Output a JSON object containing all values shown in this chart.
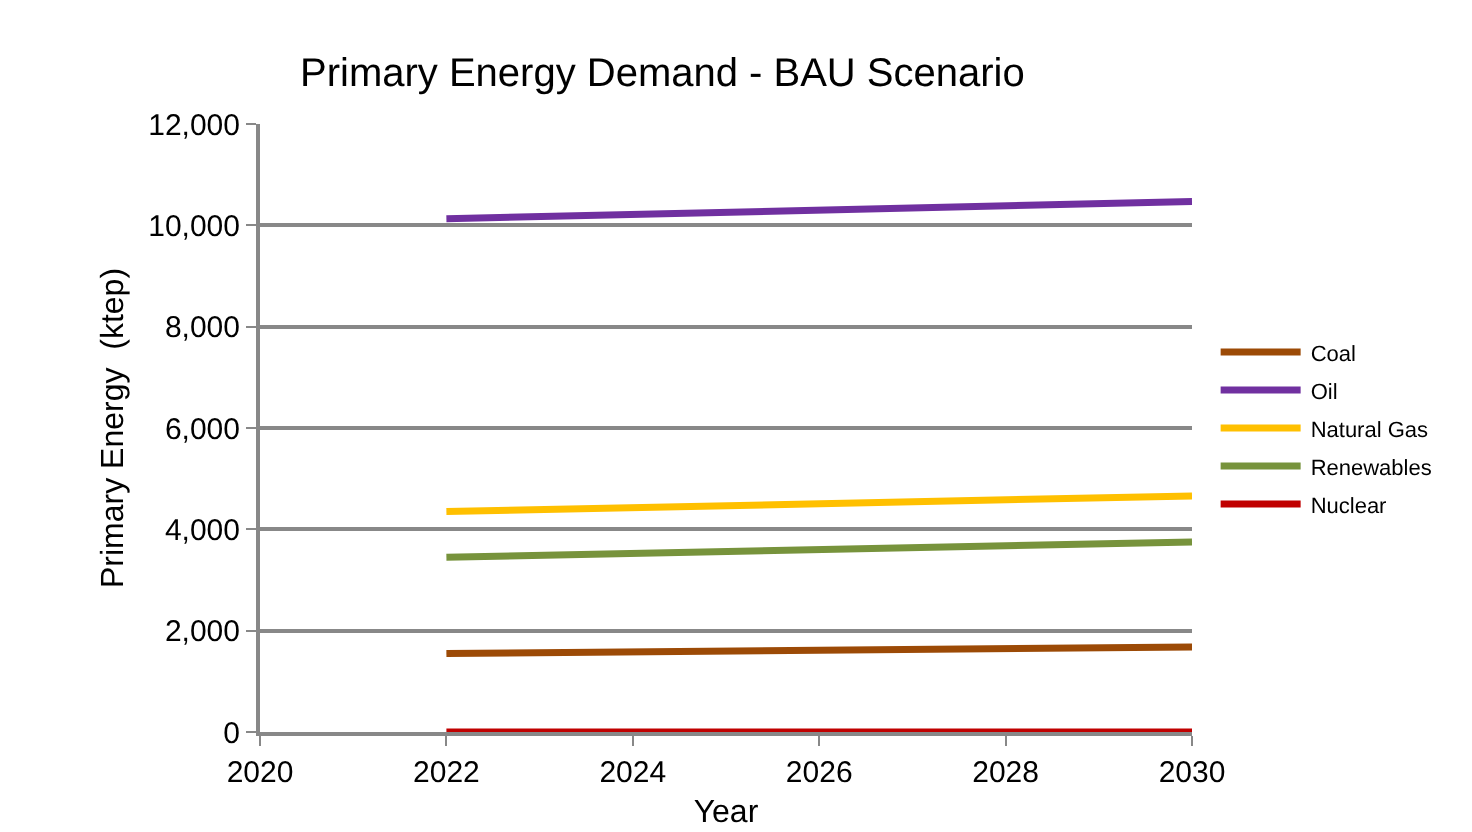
{
  "chart_data": {
    "type": "line",
    "title": "Primary Energy Demand - BAU Scenario",
    "xlabel": "Year",
    "ylabel": "Primary Energy  (ktep)",
    "x": [
      2022,
      2030
    ],
    "series": [
      {
        "name": "Coal",
        "color": "#9c4a06",
        "values": [
          1550,
          1680
        ]
      },
      {
        "name": "Oil",
        "color": "#7030a0",
        "values": [
          10130,
          10470
        ]
      },
      {
        "name": "Natural Gas",
        "color": "#ffc000",
        "values": [
          4350,
          4660
        ]
      },
      {
        "name": "Renewables",
        "color": "#77933c",
        "values": [
          3450,
          3750
        ]
      },
      {
        "name": "Nuclear",
        "color": "#c00000",
        "values": [
          0,
          0
        ]
      }
    ],
    "xlim": [
      2020,
      2030
    ],
    "xticks": [
      2020,
      2022,
      2024,
      2026,
      2028,
      2030
    ],
    "ylim": [
      0,
      12000
    ],
    "yticks": [
      {
        "value": 0,
        "label": "0"
      },
      {
        "value": 2000,
        "label": "2,000"
      },
      {
        "value": 4000,
        "label": "4,000"
      },
      {
        "value": 6000,
        "label": "6,000"
      },
      {
        "value": 8000,
        "label": "8,000"
      },
      {
        "value": 10000,
        "label": "10,000"
      },
      {
        "value": 12000,
        "label": "12,000"
      }
    ],
    "grid": "y",
    "legend": "right",
    "marker": "none",
    "line_style": "solid"
  }
}
